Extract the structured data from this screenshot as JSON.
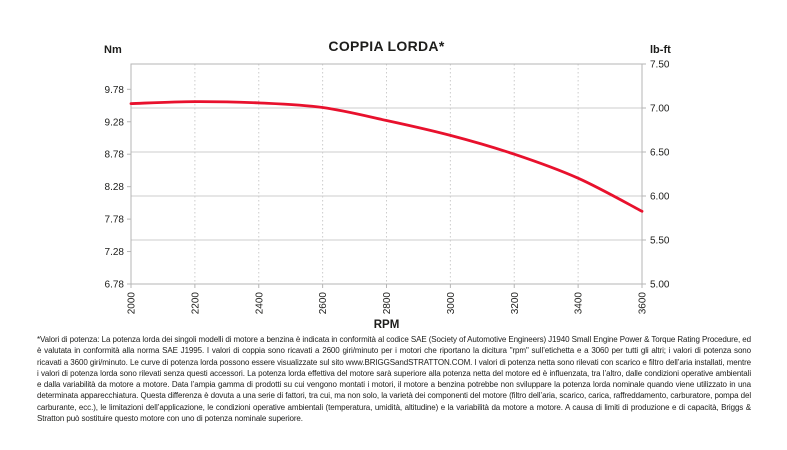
{
  "chart": {
    "title": "COPPIA LORDA*",
    "left_axis_label": "Nm",
    "right_axis_label": "lb-ft",
    "x_axis_label": "RPM"
  },
  "chart_data": {
    "type": "line",
    "title": "COPPIA LORDA*",
    "xlabel": "RPM",
    "ylabel_left": "Nm",
    "ylabel_right": "lb-ft",
    "x": [
      2000,
      2200,
      2400,
      2600,
      2800,
      3000,
      3200,
      3400,
      3600
    ],
    "series": [
      {
        "name": "coppia-lorda-nm",
        "unit": "Nm",
        "values": [
          9.56,
          9.59,
          9.57,
          9.5,
          9.3,
          9.07,
          8.78,
          8.41,
          7.9
        ]
      },
      {
        "name": "coppia-lorda-lbft",
        "unit": "lb-ft",
        "values": [
          7.05,
          7.07,
          7.06,
          7.01,
          6.86,
          6.69,
          6.48,
          6.2,
          5.83
        ]
      }
    ],
    "x_ticks": [
      2000,
      2200,
      2400,
      2600,
      2800,
      3000,
      3200,
      3400,
      3600
    ],
    "left_axis_ticks_nm": [
      9.78,
      9.28,
      8.78,
      8.28,
      7.78,
      7.28,
      6.78
    ],
    "right_axis_ticks_lbft": [
      7.5,
      7.0,
      6.5,
      6.0,
      5.5,
      5.0
    ],
    "left_axis_range_nm": [
      6.78,
      10.17
    ],
    "right_axis_range_lbft": [
      5.0,
      7.5
    ],
    "x_range": [
      2000,
      3600
    ],
    "grid": {
      "horizontal": "solid",
      "vertical": "dotted"
    },
    "legend": "none",
    "line_color": "#e8112d",
    "grid_color": "#cccccc",
    "border_color": "#b5b5b5",
    "tick_text_color": "#1d1d1b"
  },
  "footnote": {
    "text": "*Valori di potenza: La potenza lorda dei singoli modelli di motore a benzina è indicata in conformità al codice SAE (Society of Automotive Engineers) J1940 Small Engine Power & Torque Rating Procedure, ed è valutata in conformità alla norma SAE J1995. I valori di coppia sono ricavati a 2600 giri/minuto per i motori che riportano la dicitura \"rpm\" sull’etichetta e a 3060 per tutti gli altri; i valori di potenza sono ricavati a 3600 giri/minuto. Le curve di potenza lorda possono essere visualizzate sul sito www.BRIGGSandSTRATTON.COM. I valori di potenza netta sono rilevati con scarico e filtro dell’aria installati, mentre i valori di potenza lorda sono rilevati senza questi accessori. La potenza lorda effettiva del motore sarà superiore alla potenza netta del motore ed è influenzata, tra l’altro, dalle condizioni operative ambientali e dalla variabilità da motore a motore. Data l’ampia gamma di prodotti su cui vengono montati i motori, il motore a benzina potrebbe non sviluppare la potenza lorda nominale quando viene utilizzato in una determinata apparecchiatura. Questa differenza è dovuta a una serie di fattori, tra cui, ma non solo, la varietà dei componenti del motore (filtro dell’aria, scarico, carica, raffreddamento, carburatore, pompa del carburante, ecc.), le limitazioni dell’applicazione, le condizioni operative ambientali (temperatura, umidità, altitudine) e la variabilità da motore a motore. A causa di limiti di produzione e di capacità, Briggs & Stratton può sostituire questo motore con uno di potenza nominale superiore."
  }
}
